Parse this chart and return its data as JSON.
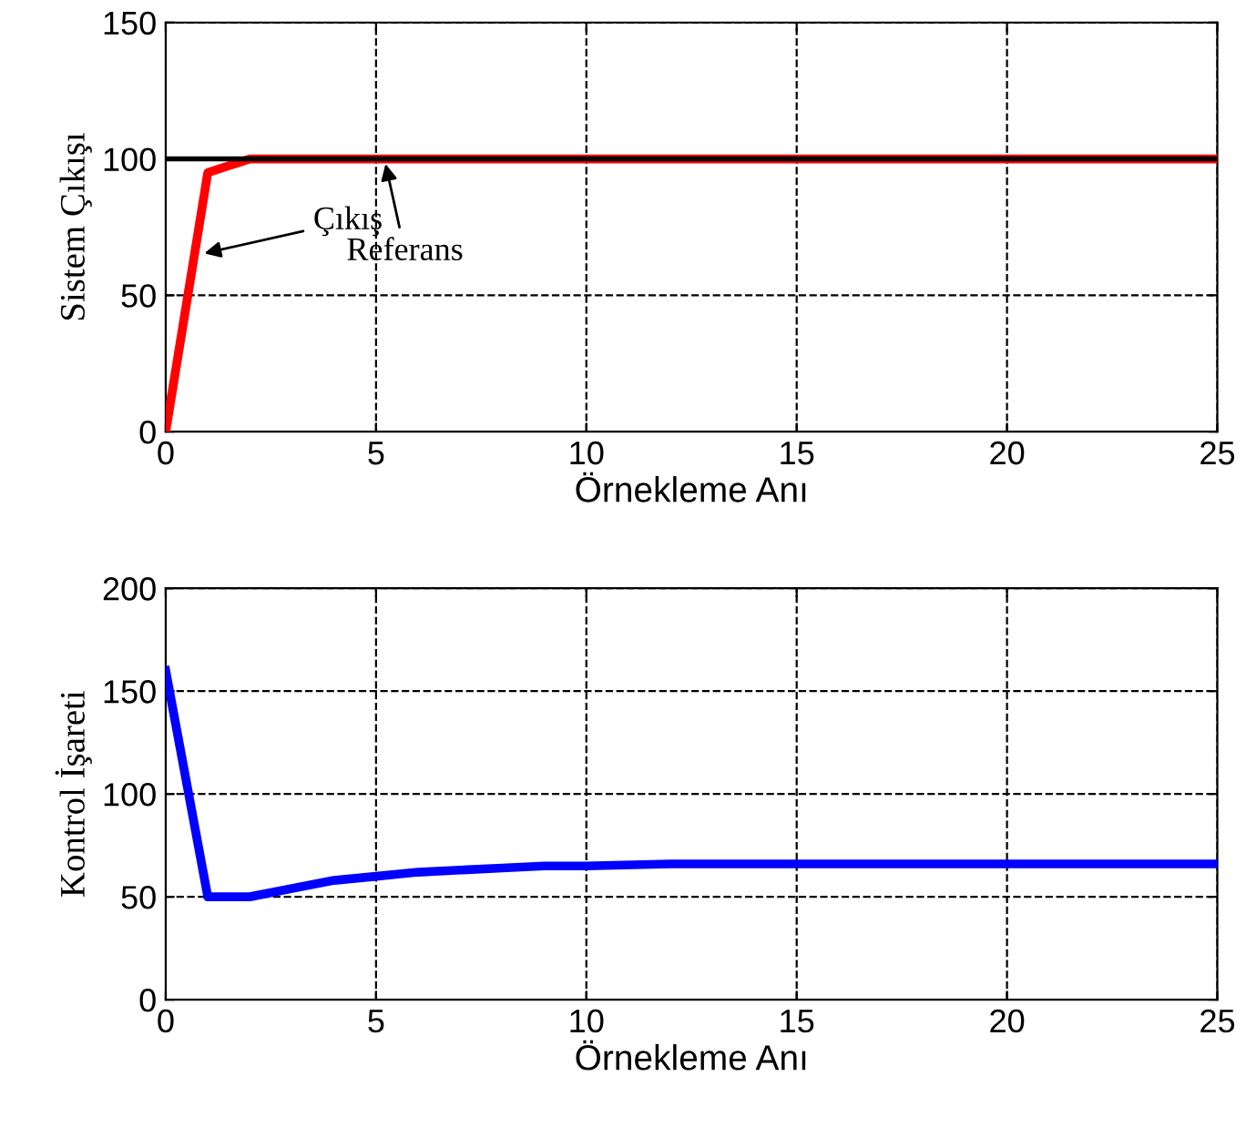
{
  "chart_data": [
    {
      "type": "line",
      "ylabel": "Sistem Çıkışı",
      "xlabel": "Örnekleme Anı",
      "xlim": [
        0,
        25
      ],
      "ylim": [
        0,
        150
      ],
      "xticks": [
        0,
        5,
        10,
        15,
        20,
        25
      ],
      "yticks": [
        0,
        50,
        100,
        150
      ],
      "grid": true,
      "series": [
        {
          "color": "#ff0000",
          "x": [
            0,
            1,
            2,
            3,
            5,
            10,
            15,
            20,
            25
          ],
          "values": [
            0,
            95,
            100,
            100,
            100,
            100,
            100,
            100,
            100
          ]
        }
      ],
      "ref_lines": [
        {
          "axis": "y",
          "value": 100,
          "color": "#000000"
        }
      ],
      "annotations": [
        {
          "text": "Çıkış",
          "x": 0.8,
          "y": 65
        },
        {
          "text": "Referans",
          "x": 5.2,
          "y": 100
        }
      ]
    },
    {
      "type": "line",
      "ylabel": "Kontrol İşareti",
      "xlabel": "Örnekleme Anı",
      "xlim": [
        0,
        25
      ],
      "ylim": [
        0,
        200
      ],
      "xticks": [
        0,
        5,
        10,
        15,
        20,
        25
      ],
      "yticks": [
        0,
        50,
        100,
        150,
        200
      ],
      "grid": true,
      "series": [
        {
          "color": "#0000ff",
          "x": [
            0,
            1,
            2,
            3,
            4,
            5,
            6,
            7,
            8,
            9,
            10,
            12,
            15,
            20,
            25
          ],
          "values": [
            160,
            50,
            50,
            54,
            58,
            60,
            62,
            63,
            64,
            65,
            65,
            66,
            66,
            66,
            66
          ]
        }
      ]
    }
  ]
}
